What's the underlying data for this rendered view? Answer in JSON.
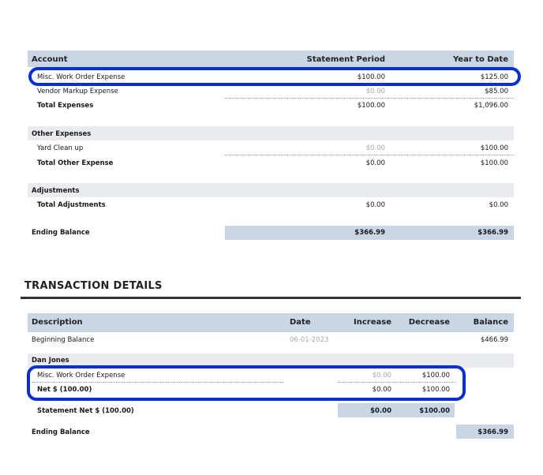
{
  "summary": {
    "headers": {
      "account": "Account",
      "period": "Statement Period",
      "ytd": "Year to Date"
    },
    "expenses": [
      {
        "name": "Misc. Work Order Expense",
        "period": "$100.00",
        "ytd": "$125.00"
      },
      {
        "name": "Vendor Markup Expense",
        "period": "$0.00",
        "ytd": "$85.00"
      }
    ],
    "total_expenses": {
      "label": "Total Expenses",
      "period": "$100.00",
      "ytd": "$1,096.00"
    },
    "other_expenses": {
      "group_label": "Other Expenses",
      "items": [
        {
          "name": "Yard Clean up",
          "period": "$0.00",
          "ytd": "$100.00"
        }
      ],
      "total": {
        "label": "Total Other Expense",
        "period": "$0.00",
        "ytd": "$100.00"
      }
    },
    "adjustments": {
      "group_label": "Adjustments",
      "total": {
        "label": "Total Adjustments",
        "period": "$0.00",
        "ytd": "$0.00"
      }
    },
    "ending_balance": {
      "label": "Ending Balance",
      "period": "$366.99",
      "ytd": "$366.99"
    }
  },
  "transactions": {
    "title": "TRANSACTION DETAILS",
    "headers": {
      "description": "Description",
      "date": "Date",
      "increase": "Increase",
      "decrease": "Decrease",
      "balance": "Balance"
    },
    "beginning": {
      "label": "Beginning Balance",
      "date": "06-01-2023",
      "balance": "$466.99"
    },
    "group": {
      "name": "Dan Jones",
      "item": {
        "label": "Misc. Work Order Expense",
        "increase": "$0.00",
        "decrease": "$100.00"
      },
      "net": {
        "label": "Net $ (100.00)",
        "increase": "$0.00",
        "decrease": "$100.00"
      }
    },
    "statement_net": {
      "label": "Statement Net $ (100.00)",
      "increase": "$0.00",
      "decrease": "$100.00"
    },
    "ending": {
      "label": "Ending Balance",
      "balance": "$366.99"
    }
  },
  "highlight_color": "#0a2fd6"
}
